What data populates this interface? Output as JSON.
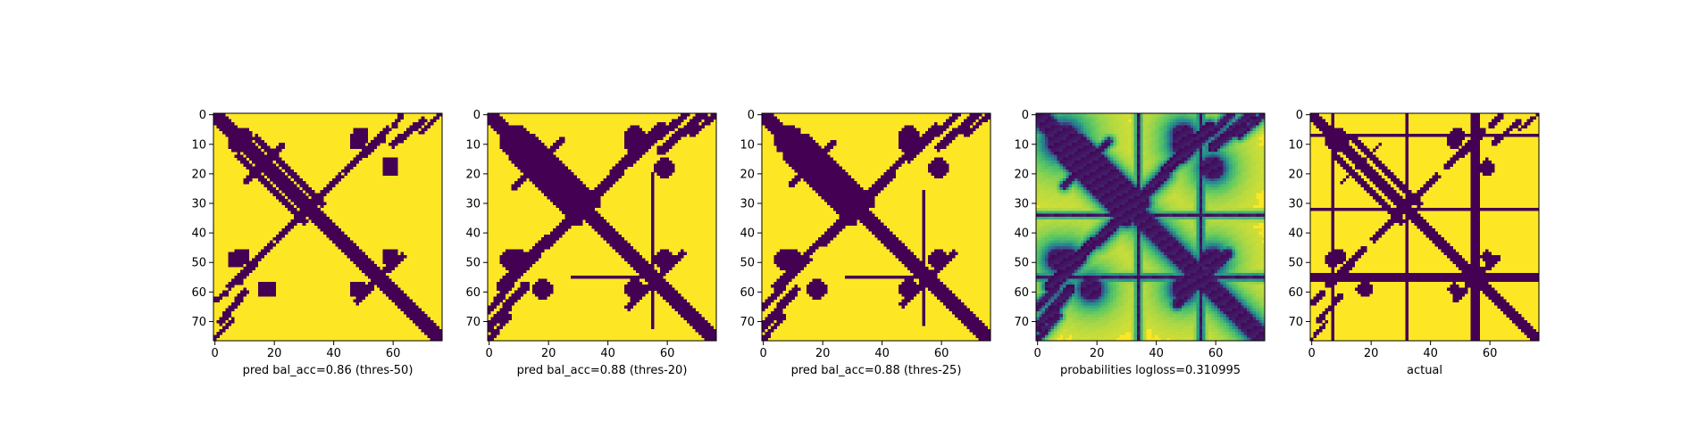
{
  "chart_data": [
    {
      "type": "heatmap",
      "title": "",
      "xlabel": "pred bal_acc=0.86 (thres-50)",
      "ylabel": "",
      "matrix_size": 77,
      "xlim": [
        -0.5,
        76.5
      ],
      "ylim": [
        76.5,
        -0.5
      ],
      "x_ticks": [
        0,
        20,
        40,
        60
      ],
      "y_ticks": [
        0,
        10,
        20,
        30,
        40,
        50,
        60,
        70
      ],
      "colormap": "viridis",
      "value_range": [
        0,
        1
      ],
      "values_description_encoding": "binary contact map; diagonal bands, off-diagonal blobs",
      "diagonal_width": 2.3,
      "bands": [
        {
          "x1": 14,
          "y1": 8,
          "x2": 36,
          "y2": 30,
          "width": 1.3
        },
        {
          "x1": 22,
          "y1": 41,
          "x2": 42,
          "y2": 21,
          "width": 1.2
        },
        {
          "x1": 58,
          "y1": 5,
          "x2": 44,
          "y2": 19,
          "width": 1.1
        },
        {
          "x1": 63,
          "y1": 0,
          "x2": 60,
          "y2": 4,
          "width": 1.0
        },
        {
          "x1": 2,
          "y1": 70,
          "x2": 10,
          "y2": 60,
          "width": 1.1
        },
        {
          "x1": 0,
          "y1": 76,
          "x2": 6,
          "y2": 69,
          "width": 0.7
        },
        {
          "x1": 8,
          "y1": 57,
          "x2": 14,
          "y2": 50,
          "width": 0.8
        },
        {
          "x1": 54,
          "y1": 56,
          "x2": 63,
          "y2": 48,
          "width": 1.1
        },
        {
          "x1": 10,
          "y1": 23,
          "x2": 16,
          "y2": 17,
          "width": 0.8
        }
      ],
      "blobs": [
        {
          "cx": 48,
          "cy": 9,
          "r": 3
        },
        {
          "cx": 8,
          "cy": 9,
          "r": 4
        },
        {
          "cx": 59,
          "cy": 18,
          "r": 3
        },
        {
          "cx": 7,
          "cy": 49,
          "r": 3
        },
        {
          "cx": 17,
          "cy": 59,
          "r": 3
        },
        {
          "cx": 48,
          "cy": 59,
          "r": 3
        }
      ],
      "stripes": []
    },
    {
      "type": "heatmap",
      "title": "",
      "xlabel": "pred bal_acc=0.88 (thres-20)",
      "ylabel": "",
      "matrix_size": 77,
      "xlim": [
        -0.5,
        76.5
      ],
      "ylim": [
        76.5,
        -0.5
      ],
      "x_ticks": [
        0,
        20,
        40,
        60
      ],
      "y_ticks": [
        0,
        10,
        20,
        30,
        40,
        50,
        60,
        70
      ],
      "colormap": "viridis",
      "value_range": [
        0,
        1
      ],
      "diagonal_width": 2.8,
      "bands": [
        {
          "x1": 14,
          "y1": 8,
          "x2": 36,
          "y2": 30,
          "width": 1.8
        },
        {
          "x1": 20,
          "y1": 43,
          "x2": 44,
          "y2": 19,
          "width": 1.6
        },
        {
          "x1": 58,
          "y1": 4,
          "x2": 42,
          "y2": 20,
          "width": 1.5
        },
        {
          "x1": 66,
          "y1": 0,
          "x2": 58,
          "y2": 7,
          "width": 1.2
        },
        {
          "x1": 0,
          "y1": 72,
          "x2": 12,
          "y2": 58,
          "width": 1.5
        },
        {
          "x1": 0,
          "y1": 76,
          "x2": 7,
          "y2": 68,
          "width": 1.0
        },
        {
          "x1": 6,
          "y1": 58,
          "x2": 16,
          "y2": 48,
          "width": 1.2
        },
        {
          "x1": 54,
          "y1": 58,
          "x2": 65,
          "y2": 47,
          "width": 1.4
        },
        {
          "x1": 8,
          "y1": 25,
          "x2": 18,
          "y2": 15,
          "width": 1.0
        }
      ],
      "blobs": [
        {
          "cx": 49,
          "cy": 10,
          "r": 3.5
        },
        {
          "cx": 8,
          "cy": 9,
          "r": 4.5
        },
        {
          "cx": 59,
          "cy": 18,
          "r": 3.5
        },
        {
          "cx": 7,
          "cy": 49,
          "r": 3.5
        },
        {
          "cx": 18,
          "cy": 59,
          "r": 3.5
        },
        {
          "cx": 49,
          "cy": 59,
          "r": 3.5
        }
      ],
      "stripes": [
        {
          "orient": "h",
          "at": 55,
          "from": 28,
          "to": 56,
          "width": 0.6
        },
        {
          "orient": "v",
          "at": 55,
          "from": 20,
          "to": 72,
          "width": 0.6
        }
      ]
    },
    {
      "type": "heatmap",
      "title": "",
      "xlabel": "pred bal_acc=0.88 (thres-25)",
      "ylabel": "",
      "matrix_size": 77,
      "xlim": [
        -0.5,
        76.5
      ],
      "ylim": [
        76.5,
        -0.5
      ],
      "x_ticks": [
        0,
        20,
        40,
        60
      ],
      "y_ticks": [
        0,
        10,
        20,
        30,
        40,
        50,
        60,
        70
      ],
      "colormap": "viridis",
      "value_range": [
        0,
        1
      ],
      "diagonal_width": 2.7,
      "bands": [
        {
          "x1": 14,
          "y1": 8,
          "x2": 36,
          "y2": 30,
          "width": 1.6
        },
        {
          "x1": 21,
          "y1": 42,
          "x2": 43,
          "y2": 20,
          "width": 1.5
        },
        {
          "x1": 58,
          "y1": 4,
          "x2": 43,
          "y2": 19,
          "width": 1.4
        },
        {
          "x1": 65,
          "y1": 0,
          "x2": 59,
          "y2": 6,
          "width": 1.1
        },
        {
          "x1": 0,
          "y1": 72,
          "x2": 11,
          "y2": 59,
          "width": 1.4
        },
        {
          "x1": 0,
          "y1": 76,
          "x2": 7,
          "y2": 68,
          "width": 0.9
        },
        {
          "x1": 7,
          "y1": 57,
          "x2": 15,
          "y2": 49,
          "width": 1.1
        },
        {
          "x1": 54,
          "y1": 57,
          "x2": 64,
          "y2": 47,
          "width": 1.3
        },
        {
          "x1": 9,
          "y1": 24,
          "x2": 17,
          "y2": 16,
          "width": 0.9
        }
      ],
      "blobs": [
        {
          "cx": 49,
          "cy": 10,
          "r": 3.3
        },
        {
          "cx": 8,
          "cy": 9,
          "r": 4.3
        },
        {
          "cx": 59,
          "cy": 18,
          "r": 3.3
        },
        {
          "cx": 7,
          "cy": 49,
          "r": 3.3
        },
        {
          "cx": 18,
          "cy": 59,
          "r": 3.3
        },
        {
          "cx": 49,
          "cy": 59,
          "r": 3.3
        }
      ],
      "stripes": [
        {
          "orient": "h",
          "at": 55,
          "from": 28,
          "to": 54,
          "width": 0.5
        },
        {
          "orient": "v",
          "at": 54,
          "from": 26,
          "to": 71,
          "width": 0.5
        }
      ]
    },
    {
      "type": "heatmap",
      "title": "",
      "xlabel": "probabilities logloss=0.310995",
      "ylabel": "",
      "matrix_size": 77,
      "xlim": [
        -0.5,
        76.5
      ],
      "ylim": [
        76.5,
        -0.5
      ],
      "x_ticks": [
        0,
        20,
        40,
        60
      ],
      "y_ticks": [
        0,
        10,
        20,
        30,
        40,
        50,
        60,
        70
      ],
      "colormap": "viridis",
      "value_range": [
        0,
        1
      ],
      "continuous": true,
      "diagonal_width": 2.6,
      "bands": [
        {
          "x1": 14,
          "y1": 8,
          "x2": 36,
          "y2": 30,
          "width": 1.6
        },
        {
          "x1": 21,
          "y1": 42,
          "x2": 43,
          "y2": 20,
          "width": 1.5
        },
        {
          "x1": 58,
          "y1": 4,
          "x2": 43,
          "y2": 19,
          "width": 1.4
        },
        {
          "x1": 65,
          "y1": 0,
          "x2": 59,
          "y2": 6,
          "width": 1.1
        },
        {
          "x1": 0,
          "y1": 72,
          "x2": 11,
          "y2": 59,
          "width": 1.4
        },
        {
          "x1": 0,
          "y1": 76,
          "x2": 7,
          "y2": 68,
          "width": 0.9
        },
        {
          "x1": 7,
          "y1": 57,
          "x2": 15,
          "y2": 49,
          "width": 1.1
        },
        {
          "x1": 54,
          "y1": 57,
          "x2": 64,
          "y2": 47,
          "width": 1.3
        },
        {
          "x1": 9,
          "y1": 24,
          "x2": 17,
          "y2": 16,
          "width": 0.9
        }
      ],
      "blobs": [
        {
          "cx": 49,
          "cy": 10,
          "r": 3.3
        },
        {
          "cx": 8,
          "cy": 9,
          "r": 4.3
        },
        {
          "cx": 59,
          "cy": 18,
          "r": 3.3
        },
        {
          "cx": 7,
          "cy": 49,
          "r": 3.3
        },
        {
          "cx": 18,
          "cy": 59,
          "r": 3.3
        },
        {
          "cx": 49,
          "cy": 59,
          "r": 3.3
        }
      ],
      "stripes": [
        {
          "orient": "h",
          "at": 55,
          "from": 0,
          "to": 76,
          "width": 0.6
        },
        {
          "orient": "v",
          "at": 55,
          "from": 0,
          "to": 76,
          "width": 0.6
        },
        {
          "orient": "h",
          "at": 34,
          "from": 0,
          "to": 76,
          "width": 0.5
        },
        {
          "orient": "v",
          "at": 34,
          "from": 0,
          "to": 76,
          "width": 0.5
        }
      ]
    },
    {
      "type": "heatmap",
      "title": "",
      "xlabel": "actual",
      "ylabel": "",
      "matrix_size": 77,
      "xlim": [
        -0.5,
        76.5
      ],
      "ylim": [
        76.5,
        -0.5
      ],
      "x_ticks": [
        0,
        20,
        40,
        60
      ],
      "y_ticks": [
        0,
        10,
        20,
        30,
        40,
        50,
        60,
        70
      ],
      "colormap": "viridis",
      "value_range": [
        0,
        1
      ],
      "diagonal_width": 2.0,
      "bands": [
        {
          "x1": 14,
          "y1": 8,
          "x2": 36,
          "y2": 30,
          "width": 1.2
        },
        {
          "x1": 22,
          "y1": 41,
          "x2": 42,
          "y2": 21,
          "width": 1.1
        },
        {
          "x1": 58,
          "y1": 5,
          "x2": 45,
          "y2": 18,
          "width": 1.0
        },
        {
          "x1": 64,
          "y1": 0,
          "x2": 60,
          "y2": 4,
          "width": 0.9
        },
        {
          "x1": 2,
          "y1": 70,
          "x2": 10,
          "y2": 61,
          "width": 0.9
        },
        {
          "x1": 0,
          "y1": 76,
          "x2": 5,
          "y2": 70,
          "width": 0.6
        },
        {
          "x1": 8,
          "y1": 57,
          "x2": 14,
          "y2": 51,
          "width": 0.7
        },
        {
          "x1": 54,
          "y1": 56,
          "x2": 63,
          "y2": 48,
          "width": 1.0
        },
        {
          "x1": 10,
          "y1": 23,
          "x2": 16,
          "y2": 17,
          "width": 0.7
        }
      ],
      "blobs": [
        {
          "cx": 48,
          "cy": 9,
          "r": 2.5
        },
        {
          "cx": 8,
          "cy": 9,
          "r": 3.2
        },
        {
          "cx": 59,
          "cy": 18,
          "r": 2.5
        },
        {
          "cx": 7,
          "cy": 49,
          "r": 2.5
        },
        {
          "cx": 17,
          "cy": 59,
          "r": 2.2
        },
        {
          "cx": 48,
          "cy": 59,
          "r": 2.2
        }
      ],
      "stripes": [
        {
          "orient": "h",
          "at": 7,
          "from": 0,
          "to": 76,
          "width": 0.6
        },
        {
          "orient": "h",
          "at": 32,
          "from": 0,
          "to": 76,
          "width": 0.6
        },
        {
          "orient": "h",
          "at": 55,
          "from": 0,
          "to": 76,
          "width": 1.2
        },
        {
          "orient": "v",
          "at": 7,
          "from": 0,
          "to": 76,
          "width": 0.6
        },
        {
          "orient": "v",
          "at": 32,
          "from": 0,
          "to": 76,
          "width": 0.6
        },
        {
          "orient": "v",
          "at": 55,
          "from": 0,
          "to": 76,
          "width": 1.2
        }
      ]
    }
  ]
}
